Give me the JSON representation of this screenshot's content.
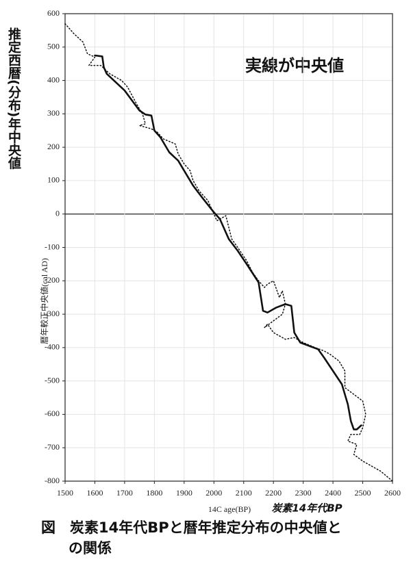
{
  "chart_data": {
    "type": "line",
    "annotation": "実線が中央値",
    "ylabel": "暦年較正中央値(cal AD)",
    "ylabel_handwritten": "推定西暦(分布)年中央値",
    "xlabel": "14C age(BP)",
    "xlabel_handwritten": "炭素14年代BP",
    "caption": [
      "図　炭素14年代BPと暦年推定分布の中央値と",
      "の関係"
    ],
    "xlim": [
      1500,
      2600
    ],
    "ylim": [
      -800,
      600
    ],
    "xticks": [
      1500,
      1600,
      1700,
      1800,
      1900,
      2000,
      2100,
      2200,
      2300,
      2400,
      2500,
      2600
    ],
    "yticks": [
      600,
      500,
      400,
      300,
      200,
      100,
      0,
      -100,
      -200,
      -300,
      -400,
      -500,
      -600,
      -700,
      -800
    ],
    "grid": true,
    "series": [
      {
        "color": "#111111",
        "style": "solid",
        "x": [
          1600,
          1625,
          1630,
          1640,
          1700,
          1750,
          1770,
          1790,
          1800,
          1820,
          1850,
          1880,
          1900,
          1930,
          1960,
          2000,
          2020,
          2050,
          2080,
          2110,
          2150,
          2165,
          2180,
          2210,
          2240,
          2260,
          2270,
          2290,
          2320,
          2350,
          2370,
          2400,
          2430,
          2450,
          2460,
          2470,
          2480,
          2495
        ],
        "values": [
          475,
          472,
          440,
          420,
          370,
          310,
          298,
          295,
          250,
          230,
          185,
          160,
          130,
          85,
          50,
          5,
          -15,
          -75,
          -110,
          -150,
          -205,
          -290,
          -295,
          -280,
          -270,
          -275,
          -355,
          -385,
          -395,
          -405,
          -430,
          -470,
          -510,
          -570,
          -620,
          -645,
          -645,
          -633
        ]
      },
      {
        "color": "#111111",
        "style": "dotted",
        "x": [
          1500,
          1530,
          1560,
          1575,
          1600,
          1580,
          1620,
          1650,
          1690,
          1710,
          1740,
          1760,
          1770,
          1750,
          1790,
          1810,
          1830,
          1870,
          1880,
          1900,
          1920,
          1930,
          1950,
          1980,
          2000,
          2010,
          2040,
          2050,
          2060,
          2080,
          2110,
          2130,
          2150,
          2170,
          2180,
          2200,
          2220,
          2230,
          2240,
          2230,
          2200,
          2170,
          2180,
          2200,
          2240,
          2270,
          2300,
          2340,
          2370,
          2390,
          2420,
          2440,
          2440,
          2470,
          2500,
          2510,
          2500,
          2490,
          2460,
          2450,
          2480,
          2470,
          2500,
          2560,
          2600
        ],
        "values": [
          570,
          540,
          515,
          480,
          470,
          445,
          445,
          420,
          400,
          380,
          330,
          300,
          270,
          265,
          255,
          245,
          225,
          210,
          180,
          150,
          130,
          100,
          70,
          40,
          0,
          -20,
          -5,
          -40,
          -75,
          -100,
          -140,
          -175,
          -200,
          -220,
          -210,
          -200,
          -250,
          -230,
          -270,
          -300,
          -320,
          -340,
          -330,
          -355,
          -375,
          -370,
          -385,
          -400,
          -410,
          -420,
          -440,
          -470,
          -520,
          -540,
          -560,
          -600,
          -640,
          -660,
          -660,
          -680,
          -690,
          -720,
          -740,
          -770,
          -800
        ]
      }
    ]
  }
}
